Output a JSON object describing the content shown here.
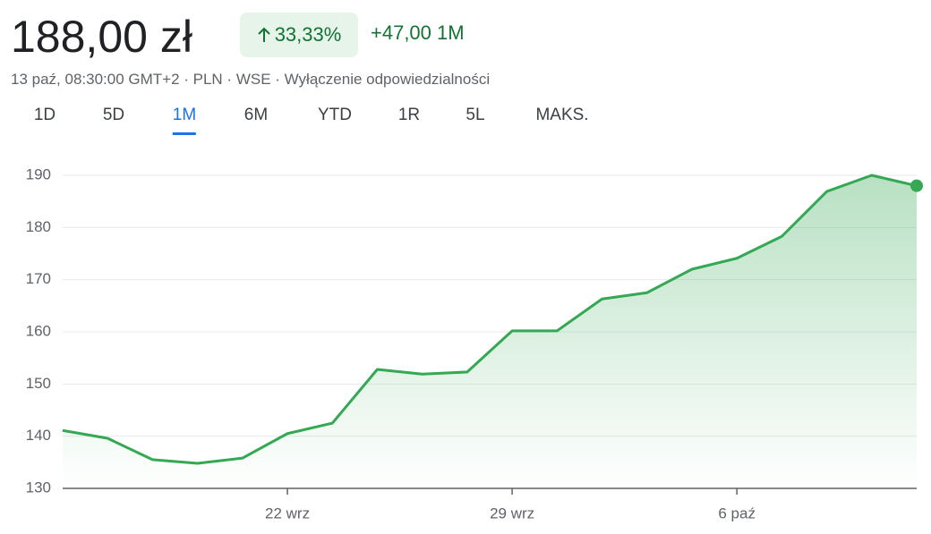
{
  "header": {
    "price": "188,00 zł",
    "change_percent": "33,33%",
    "change_abs": "+47,00 1M",
    "meta": "13 paź, 08:30:00 GMT+2 · PLN · WSE · Wyłączenie odpowiedzialności"
  },
  "tabs": {
    "items": [
      "1D",
      "5D",
      "1M",
      "6M",
      "YTD",
      "1R",
      "5L",
      "MAKS."
    ],
    "selected_index": 2
  },
  "chart_data": {
    "type": "line",
    "x": [
      0,
      1,
      2,
      3,
      4,
      5,
      6,
      7,
      8,
      9,
      10,
      11,
      12,
      13,
      14,
      15,
      16,
      17,
      18,
      19
    ],
    "values": [
      141.1,
      139.6,
      135.5,
      134.8,
      135.8,
      140.5,
      142.5,
      152.8,
      151.9,
      152.3,
      160.2,
      160.2,
      166.3,
      167.5,
      172,
      174.1,
      178.3,
      186.9,
      190,
      188
    ],
    "color": "#34a853",
    "xlim": [
      0,
      19
    ],
    "xticks": [
      {
        "value": 5,
        "label": "22 wrz"
      },
      {
        "value": 10,
        "label": "29 wrz"
      },
      {
        "value": 15,
        "label": "6 paź"
      }
    ],
    "ylim": [
      130,
      190
    ],
    "yticks": [
      130,
      140,
      150,
      160,
      170,
      180,
      190
    ],
    "grid": true
  }
}
